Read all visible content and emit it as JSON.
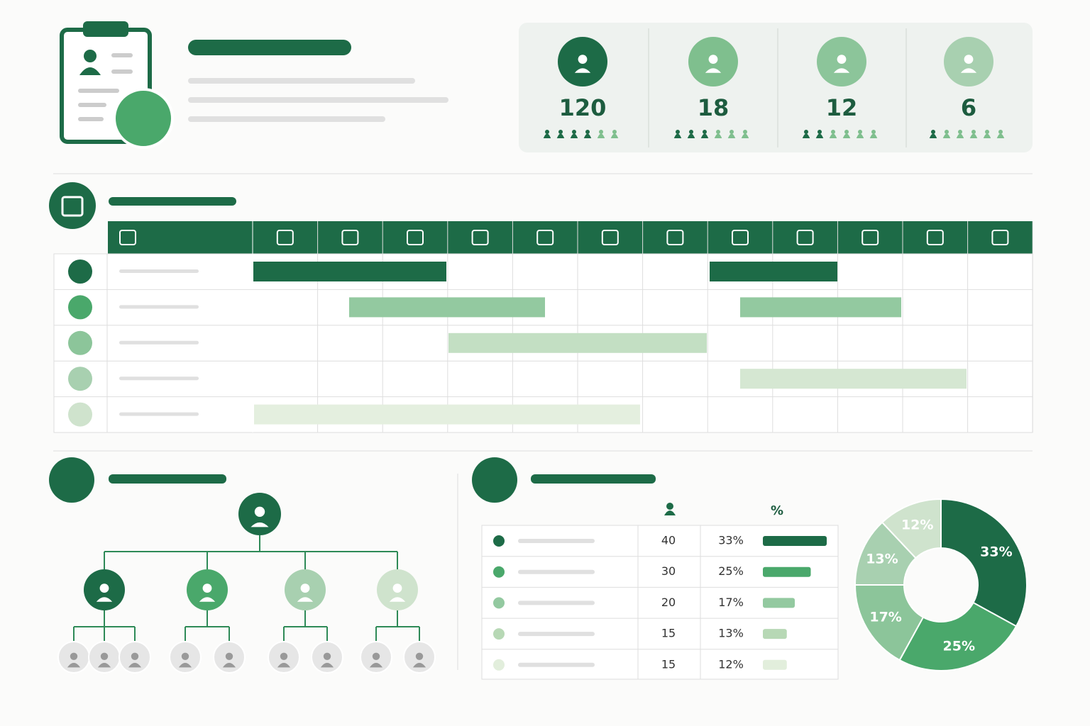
{
  "stats": [
    {
      "value": 120,
      "color": "#1d6b47"
    },
    {
      "value": 18,
      "color": "#7fbf8e"
    },
    {
      "value": 12,
      "color": "#8cc59a"
    },
    {
      "value": 6,
      "color": "#a8d0b0"
    }
  ],
  "table": {
    "header_pct": "%",
    "rows": [
      {
        "count": 40,
        "pct": "33%",
        "color": "#1d6b47"
      },
      {
        "count": 30,
        "pct": "25%",
        "color": "#4aa86b"
      },
      {
        "count": 20,
        "pct": "17%",
        "color": "#93c9a0"
      },
      {
        "count": 15,
        "pct": "13%",
        "color": "#b7d8b5"
      },
      {
        "count": 15,
        "pct": "12%",
        "color": "#e2eedc"
      }
    ]
  },
  "chart_data": {
    "type": "pie",
    "values": [
      33,
      25,
      17,
      13,
      12
    ],
    "value_labels": [
      "33%",
      "25%",
      "17%",
      "13%",
      "12%"
    ],
    "colors": [
      "#1d6b47",
      "#4aa86b",
      "#8cc59a",
      "#a8d0b0",
      "#cfe3cd"
    ]
  }
}
